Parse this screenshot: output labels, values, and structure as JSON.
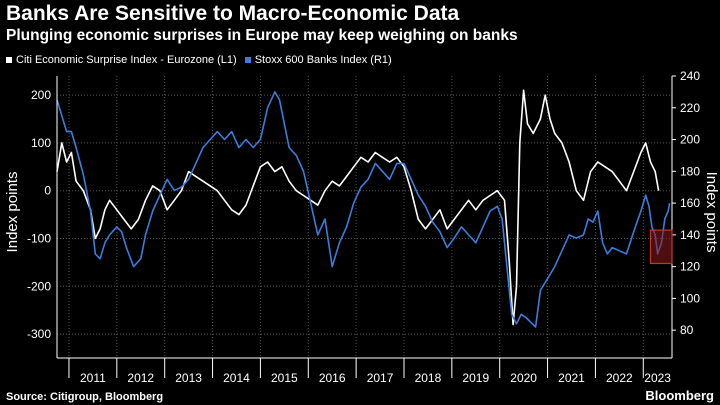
{
  "header": {
    "title": "Banks Are Sensitive to Macro-Economic Data",
    "subtitle": "Plunging economic surprises in Europe may keep weighing on banks"
  },
  "footer": {
    "source": "Source: Citigroup, Bloomberg",
    "brand": "Bloomberg"
  },
  "colors": {
    "background": "#000000",
    "series_white": "#ffffff",
    "series_blue": "#3b7ddd",
    "grid": "#555555",
    "highlight_box": "#8b1a1a"
  },
  "chart_data": {
    "type": "line",
    "legend_position": "top-left",
    "grid": true,
    "x_ticks": [
      "2011",
      "2012",
      "2013",
      "2014",
      "2015",
      "2016",
      "2017",
      "2018",
      "2019",
      "2020",
      "2021",
      "2022",
      "2023"
    ],
    "x_range": [
      2010.75,
      2023.6
    ],
    "y_left": {
      "label": "Index points",
      "range": [
        -350,
        240
      ],
      "ticks": [
        200,
        100,
        0,
        -100,
        -200,
        -300
      ]
    },
    "y_right": {
      "label": "Index points",
      "range": [
        62.5,
        240
      ],
      "ticks": [
        240,
        220,
        200,
        180,
        160,
        140,
        120,
        100,
        80
      ]
    },
    "highlight": {
      "x_range": [
        2023.15,
        2023.6
      ],
      "y_right_range": [
        122,
        143
      ],
      "note": ""
    },
    "series": [
      {
        "name": "Citi Economic Surprise Index - Eurozone (L1)",
        "axis": "left",
        "color": "#ffffff",
        "points": [
          [
            2010.75,
            40
          ],
          [
            2010.85,
            100
          ],
          [
            2010.95,
            60
          ],
          [
            2011.05,
            80
          ],
          [
            2011.15,
            20
          ],
          [
            2011.3,
            0
          ],
          [
            2011.45,
            -40
          ],
          [
            2011.55,
            -100
          ],
          [
            2011.65,
            -80
          ],
          [
            2011.75,
            -40
          ],
          [
            2011.85,
            -20
          ],
          [
            2012.0,
            -40
          ],
          [
            2012.15,
            -60
          ],
          [
            2012.3,
            -80
          ],
          [
            2012.45,
            -60
          ],
          [
            2012.6,
            -20
          ],
          [
            2012.75,
            10
          ],
          [
            2012.9,
            0
          ],
          [
            2013.05,
            -40
          ],
          [
            2013.2,
            -20
          ],
          [
            2013.35,
            0
          ],
          [
            2013.5,
            40
          ],
          [
            2013.65,
            30
          ],
          [
            2013.8,
            20
          ],
          [
            2013.95,
            10
          ],
          [
            2014.1,
            0
          ],
          [
            2014.25,
            -20
          ],
          [
            2014.4,
            -40
          ],
          [
            2014.55,
            -50
          ],
          [
            2014.7,
            -30
          ],
          [
            2014.85,
            10
          ],
          [
            2015.0,
            50
          ],
          [
            2015.15,
            60
          ],
          [
            2015.3,
            40
          ],
          [
            2015.45,
            50
          ],
          [
            2015.6,
            20
          ],
          [
            2015.75,
            0
          ],
          [
            2015.9,
            -10
          ],
          [
            2016.05,
            -20
          ],
          [
            2016.2,
            -30
          ],
          [
            2016.35,
            0
          ],
          [
            2016.5,
            20
          ],
          [
            2016.65,
            10
          ],
          [
            2016.8,
            30
          ],
          [
            2016.95,
            50
          ],
          [
            2017.1,
            70
          ],
          [
            2017.25,
            60
          ],
          [
            2017.4,
            80
          ],
          [
            2017.55,
            70
          ],
          [
            2017.7,
            60
          ],
          [
            2017.85,
            70
          ],
          [
            2018.0,
            50
          ],
          [
            2018.15,
            0
          ],
          [
            2018.3,
            -60
          ],
          [
            2018.45,
            -80
          ],
          [
            2018.6,
            -60
          ],
          [
            2018.75,
            -40
          ],
          [
            2018.9,
            -80
          ],
          [
            2019.05,
            -60
          ],
          [
            2019.2,
            -40
          ],
          [
            2019.35,
            -20
          ],
          [
            2019.5,
            -40
          ],
          [
            2019.65,
            -20
          ],
          [
            2019.8,
            -10
          ],
          [
            2019.95,
            0
          ],
          [
            2020.1,
            -20
          ],
          [
            2020.2,
            -150
          ],
          [
            2020.28,
            -280
          ],
          [
            2020.35,
            -200
          ],
          [
            2020.42,
            100
          ],
          [
            2020.5,
            210
          ],
          [
            2020.58,
            140
          ],
          [
            2020.7,
            120
          ],
          [
            2020.85,
            150
          ],
          [
            2020.95,
            200
          ],
          [
            2021.05,
            150
          ],
          [
            2021.15,
            120
          ],
          [
            2021.3,
            100
          ],
          [
            2021.45,
            60
          ],
          [
            2021.6,
            0
          ],
          [
            2021.75,
            -20
          ],
          [
            2021.9,
            40
          ],
          [
            2022.05,
            60
          ],
          [
            2022.2,
            50
          ],
          [
            2022.35,
            40
          ],
          [
            2022.5,
            20
          ],
          [
            2022.65,
            0
          ],
          [
            2022.8,
            40
          ],
          [
            2022.95,
            80
          ],
          [
            2023.05,
            100
          ],
          [
            2023.15,
            60
          ],
          [
            2023.25,
            40
          ],
          [
            2023.32,
            0
          ]
        ]
      },
      {
        "name": "Stoxx 600 Banks Index (R1)",
        "axis": "right",
        "color": "#3b7ddd",
        "points": [
          [
            2010.75,
            225
          ],
          [
            2010.85,
            215
          ],
          [
            2010.95,
            205
          ],
          [
            2011.05,
            205
          ],
          [
            2011.15,
            195
          ],
          [
            2011.3,
            178
          ],
          [
            2011.45,
            155
          ],
          [
            2011.55,
            128
          ],
          [
            2011.65,
            125
          ],
          [
            2011.75,
            135
          ],
          [
            2011.85,
            140
          ],
          [
            2012.0,
            145
          ],
          [
            2012.1,
            142
          ],
          [
            2012.2,
            132
          ],
          [
            2012.35,
            120
          ],
          [
            2012.5,
            125
          ],
          [
            2012.6,
            140
          ],
          [
            2012.75,
            155
          ],
          [
            2012.9,
            165
          ],
          [
            2013.05,
            175
          ],
          [
            2013.2,
            168
          ],
          [
            2013.35,
            170
          ],
          [
            2013.5,
            175
          ],
          [
            2013.65,
            185
          ],
          [
            2013.8,
            195
          ],
          [
            2013.95,
            200
          ],
          [
            2014.1,
            205
          ],
          [
            2014.25,
            200
          ],
          [
            2014.4,
            205
          ],
          [
            2014.55,
            195
          ],
          [
            2014.7,
            200
          ],
          [
            2014.85,
            195
          ],
          [
            2015.0,
            200
          ],
          [
            2015.15,
            220
          ],
          [
            2015.3,
            230
          ],
          [
            2015.4,
            225
          ],
          [
            2015.5,
            210
          ],
          [
            2015.6,
            195
          ],
          [
            2015.75,
            190
          ],
          [
            2015.9,
            180
          ],
          [
            2016.05,
            160
          ],
          [
            2016.2,
            140
          ],
          [
            2016.35,
            150
          ],
          [
            2016.5,
            120
          ],
          [
            2016.65,
            135
          ],
          [
            2016.8,
            145
          ],
          [
            2016.95,
            160
          ],
          [
            2017.1,
            170
          ],
          [
            2017.25,
            175
          ],
          [
            2017.4,
            185
          ],
          [
            2017.55,
            180
          ],
          [
            2017.7,
            175
          ],
          [
            2017.85,
            185
          ],
          [
            2018.0,
            185
          ],
          [
            2018.15,
            175
          ],
          [
            2018.3,
            165
          ],
          [
            2018.45,
            158
          ],
          [
            2018.6,
            148
          ],
          [
            2018.75,
            142
          ],
          [
            2018.9,
            132
          ],
          [
            2019.05,
            138
          ],
          [
            2019.2,
            145
          ],
          [
            2019.35,
            140
          ],
          [
            2019.5,
            135
          ],
          [
            2019.65,
            145
          ],
          [
            2019.8,
            155
          ],
          [
            2019.95,
            158
          ],
          [
            2020.05,
            150
          ],
          [
            2020.15,
            120
          ],
          [
            2020.25,
            90
          ],
          [
            2020.35,
            84
          ],
          [
            2020.45,
            90
          ],
          [
            2020.55,
            88
          ],
          [
            2020.65,
            85
          ],
          [
            2020.75,
            82
          ],
          [
            2020.85,
            105
          ],
          [
            2020.95,
            110
          ],
          [
            2021.05,
            115
          ],
          [
            2021.15,
            120
          ],
          [
            2021.3,
            130
          ],
          [
            2021.45,
            140
          ],
          [
            2021.6,
            138
          ],
          [
            2021.75,
            140
          ],
          [
            2021.85,
            150
          ],
          [
            2021.95,
            148
          ],
          [
            2022.05,
            155
          ],
          [
            2022.15,
            135
          ],
          [
            2022.25,
            128
          ],
          [
            2022.35,
            132
          ],
          [
            2022.5,
            130
          ],
          [
            2022.65,
            128
          ],
          [
            2022.8,
            142
          ],
          [
            2022.95,
            155
          ],
          [
            2023.05,
            165
          ],
          [
            2023.12,
            158
          ],
          [
            2023.18,
            145
          ],
          [
            2023.25,
            140
          ],
          [
            2023.3,
            128
          ],
          [
            2023.38,
            135
          ],
          [
            2023.45,
            150
          ],
          [
            2023.52,
            155
          ],
          [
            2023.55,
            160
          ]
        ]
      }
    ]
  }
}
